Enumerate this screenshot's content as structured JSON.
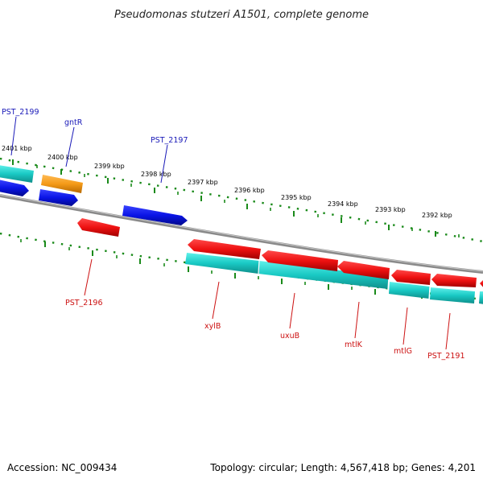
{
  "title": "Pseudomonas stutzeri A1501, complete genome",
  "accession": "Accession: NC_009434",
  "topology": "Topology: circular; Length: 4,567,418 bp; Genes: 4,201",
  "colors": {
    "forward": "#0a14e6",
    "reverse": "#ee1111",
    "cds": "#19c9c4",
    "regulator": "#f49a18",
    "backbone": "#8a8a8a",
    "ticks": "#1a8a1a",
    "label_forward": "#1a1ab8",
    "label_reverse": "#cc1111"
  },
  "ticks": [
    "2401 kbp",
    "2400 kbp",
    "2399 kbp",
    "2398 kbp",
    "2397 kbp",
    "2396 kbp",
    "2395 kbp",
    "2394 kbp",
    "2393 kbp",
    "2392 kbp"
  ],
  "genes_forward": [
    "PST_2199",
    "gntR",
    "PST_2197"
  ],
  "genes_reverse": [
    "PST_2196",
    "xylB",
    "uxuB",
    "mtlK",
    "mtlG",
    "PST_2191"
  ]
}
